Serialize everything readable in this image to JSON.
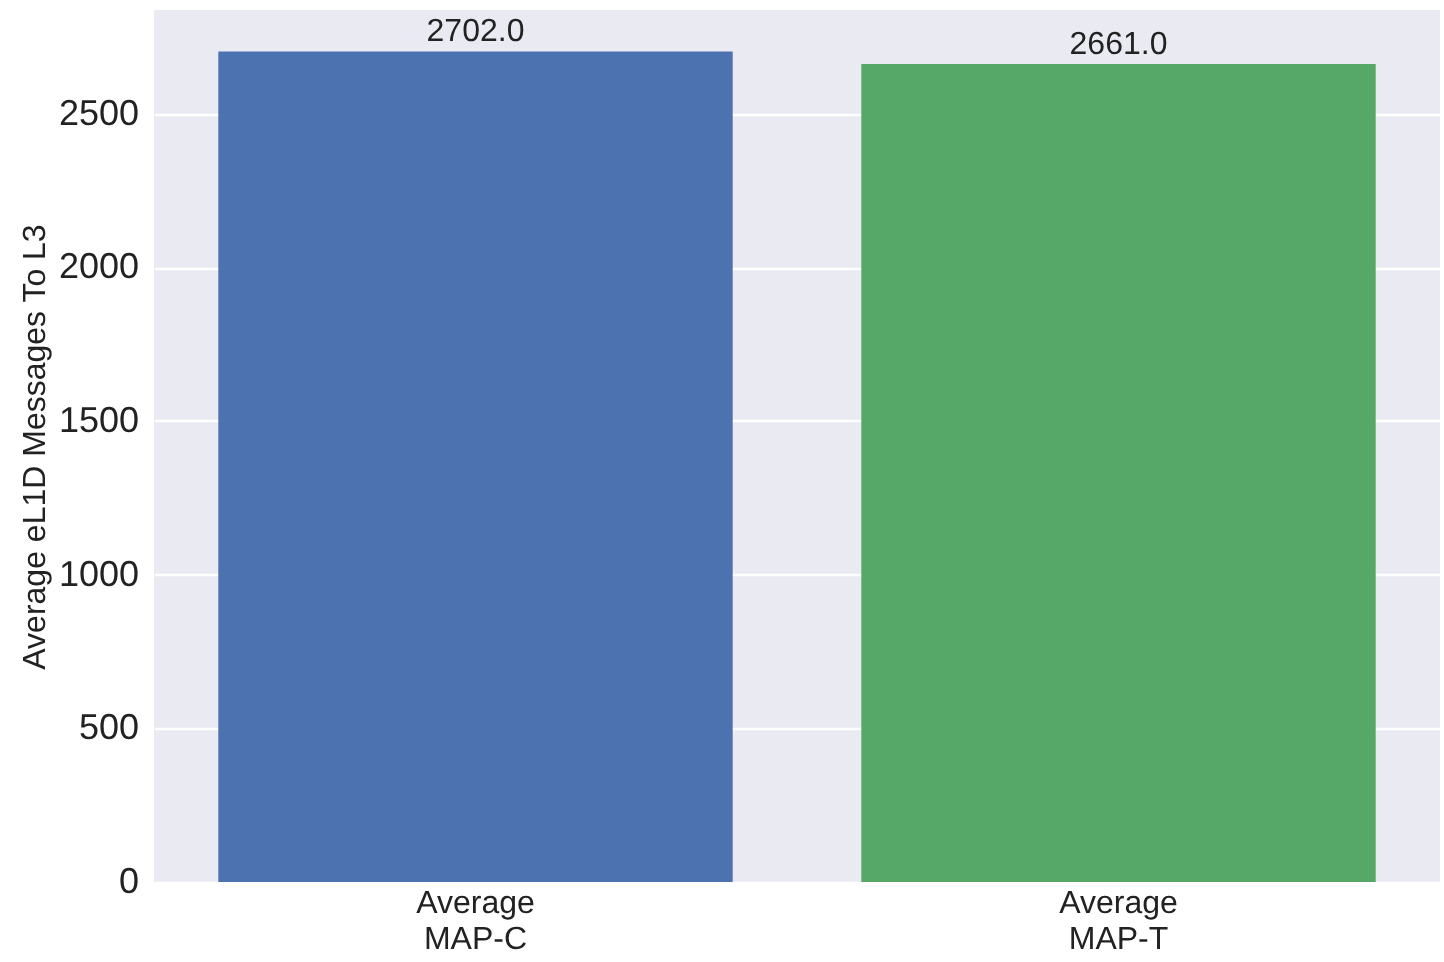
{
  "chart_data": {
    "type": "bar",
    "ylabel": "Average eL1D Messages To L3",
    "categories": [
      "Average\nMAP-C",
      "Average\nMAP-T"
    ],
    "values": [
      2702,
      2661
    ],
    "colors": [
      "#4c72b0",
      "#55a868"
    ],
    "value_labels": [
      "2702.0",
      "2661.0"
    ],
    "ylim": [
      0,
      2837
    ],
    "yticks": [
      0,
      500,
      1000,
      1500,
      2000,
      2500
    ],
    "grid": "y"
  }
}
